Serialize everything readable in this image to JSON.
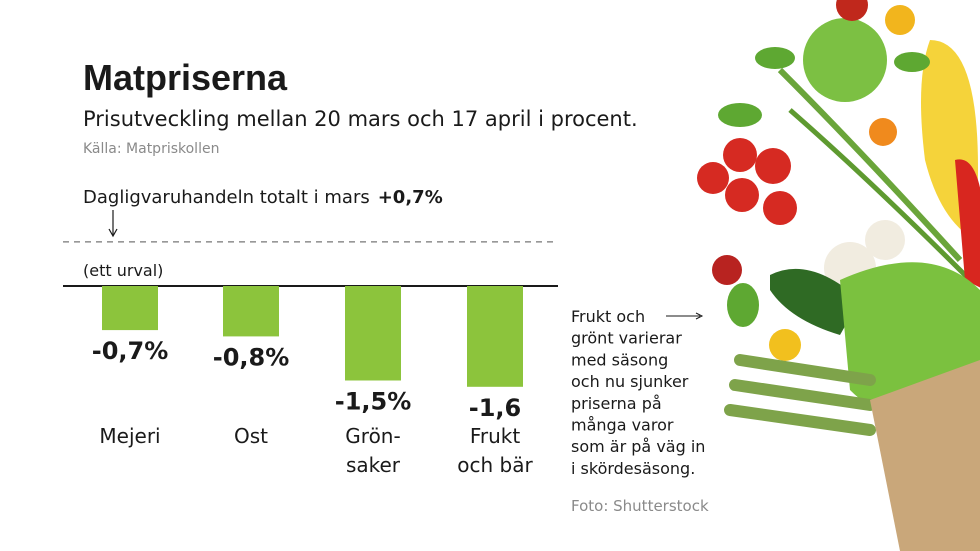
{
  "chart_data": {
    "type": "bar",
    "title": "Matpriserna",
    "subtitle": "Prisutveckling mellan 20 mars och 17 april i procent.",
    "source": "Källa: Matpriskollen",
    "reference": {
      "text": "Dagligvaruhandeln totalt i mars",
      "value": 0.7,
      "label": "+0,7%"
    },
    "selection_note": "(ett urval)",
    "categories": [
      [
        "Mejeri"
      ],
      [
        "Ost"
      ],
      [
        "Grön-",
        "saker"
      ],
      [
        "Frukt",
        "och bär"
      ]
    ],
    "values": [
      -0.7,
      -0.8,
      -1.5,
      -1.6
    ],
    "value_labels": [
      "-0,7%",
      "-0,8%",
      "-1,5%",
      "-1,6"
    ],
    "color": "#8cc43c",
    "ylim": [
      -2,
      1
    ],
    "annotation": [
      "Frukt och",
      "grönt varierar",
      "med säsong",
      "och nu sjunker",
      "priserna på",
      "många varor",
      "som är på väg in",
      "i skördesäsong."
    ],
    "photo_credit": "Foto: Shutterstock"
  }
}
